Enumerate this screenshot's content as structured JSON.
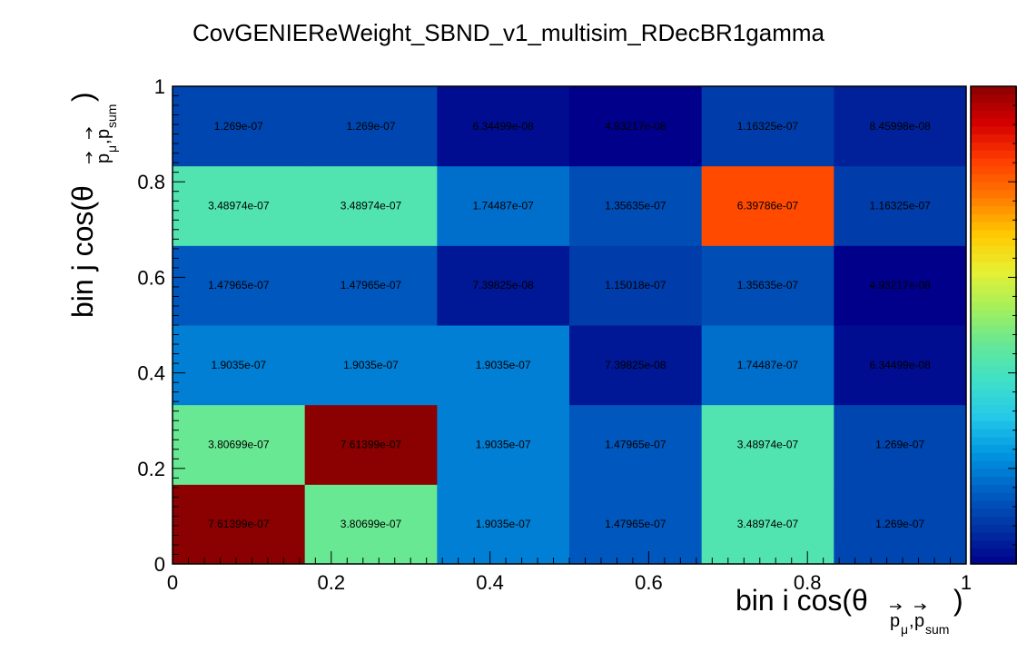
{
  "chart_data": {
    "type": "heatmap",
    "title": "CovGENIEReWeight_SBND_v1_multisim_RDecBR1gamma",
    "xlabel": {
      "prefix": "bin i cos(θ",
      "sub1": "p",
      "sub1_sub": "μ",
      "comma": ",",
      "sub2": "p",
      "sub2_sub": "sum",
      "suffix": ")"
    },
    "ylabel": {
      "prefix": "bin j cos(θ",
      "sub1": "p",
      "sub1_sub": "μ",
      "comma": ",",
      "sub2": "p",
      "sub2_sub": "sum",
      "suffix": ")"
    },
    "xlim": [
      0,
      1
    ],
    "ylim": [
      0,
      1
    ],
    "xticks": [
      "0",
      "0.2",
      "0.4",
      "0.6",
      "0.8",
      "1"
    ],
    "yticks": [
      "0",
      "0.2",
      "0.4",
      "0.6",
      "0.8",
      "1"
    ],
    "nx": 6,
    "ny": 6,
    "zmin": 4.93217e-08,
    "zmax": 7.61399e-07,
    "rows": [
      {
        "values": [
          7.61399e-07,
          3.80699e-07,
          1.9035e-07,
          1.47965e-07,
          3.48974e-07,
          1.269e-07
        ],
        "labels": [
          "7.61399e-07",
          "3.80699e-07",
          "1.9035e-07",
          "1.47965e-07",
          "3.48974e-07",
          "1.269e-07"
        ]
      },
      {
        "values": [
          3.80699e-07,
          7.61399e-07,
          1.9035e-07,
          1.47965e-07,
          3.48974e-07,
          1.269e-07
        ],
        "labels": [
          "3.80699e-07",
          "7.61399e-07",
          "1.9035e-07",
          "1.47965e-07",
          "3.48974e-07",
          "1.269e-07"
        ]
      },
      {
        "values": [
          1.9035e-07,
          1.9035e-07,
          1.9035e-07,
          7.39825e-08,
          1.74487e-07,
          6.34499e-08
        ],
        "labels": [
          "1.9035e-07",
          "1.9035e-07",
          "1.9035e-07",
          "7.39825e-08",
          "1.74487e-07",
          "6.34499e-08"
        ]
      },
      {
        "values": [
          1.47965e-07,
          1.47965e-07,
          7.39825e-08,
          1.15018e-07,
          1.35635e-07,
          4.93217e-08
        ],
        "labels": [
          "1.47965e-07",
          "1.47965e-07",
          "7.39825e-08",
          "1.15018e-07",
          "1.35635e-07",
          "4.93217e-08"
        ]
      },
      {
        "values": [
          3.48974e-07,
          3.48974e-07,
          1.74487e-07,
          1.35635e-07,
          6.39786e-07,
          1.16325e-07
        ],
        "labels": [
          "3.48974e-07",
          "3.48974e-07",
          "1.74487e-07",
          "1.35635e-07",
          "6.39786e-07",
          "1.16325e-07"
        ]
      },
      {
        "values": [
          1.269e-07,
          1.269e-07,
          6.34499e-08,
          4.93217e-08,
          1.16325e-07,
          8.45998e-08
        ],
        "labels": [
          "1.269e-07",
          "1.269e-07",
          "6.34499e-08",
          "4.93217e-08",
          "1.16325e-07",
          "8.45998e-08"
        ]
      }
    ],
    "palette": [
      "#00008b",
      "#0033a3",
      "#0060c4",
      "#0096e0",
      "#25c8e8",
      "#40e0c8",
      "#66e896",
      "#a6f05a",
      "#e8f032",
      "#ffc800",
      "#ff7a00",
      "#ff3c00",
      "#d40000",
      "#8b0000"
    ],
    "palette_name": "jet-like (ROOT)",
    "grid": false,
    "colorbar": "right"
  }
}
